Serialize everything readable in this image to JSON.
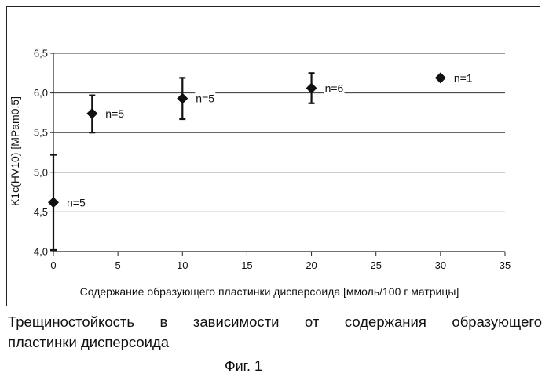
{
  "chart_data": {
    "type": "scatter",
    "ylabel": "K1c(HV10) [MPam0,5]",
    "xlabel": "Содержание образующего пластинки дисперсоида [ммоль/100 г матрицы]",
    "xlim": [
      0,
      35
    ],
    "ylim": [
      4.0,
      6.5
    ],
    "x_ticks": [
      "0",
      "5",
      "10",
      "15",
      "20",
      "25",
      "30",
      "35"
    ],
    "y_ticks": [
      "4,0",
      "4,5",
      "5,0",
      "5,5",
      "6,0",
      "6,5"
    ],
    "grid": true,
    "points": [
      {
        "x": 0,
        "y": 4.62,
        "err_low": 4.02,
        "err_high": 5.22,
        "label": "n=5"
      },
      {
        "x": 3,
        "y": 5.74,
        "err_low": 5.5,
        "err_high": 5.97,
        "label": "n=5"
      },
      {
        "x": 10,
        "y": 5.93,
        "err_low": 5.67,
        "err_high": 6.19,
        "label": "n=5"
      },
      {
        "x": 20,
        "y": 6.06,
        "err_low": 5.87,
        "err_high": 6.25,
        "label": "n=6"
      },
      {
        "x": 30,
        "y": 6.19,
        "label": "n=1"
      }
    ]
  },
  "caption": {
    "line1": "Трещиностойкость в зависимости от содержания образующего",
    "line2": "пластинки дисперсоида"
  },
  "figure_label": "Фиг. 1"
}
